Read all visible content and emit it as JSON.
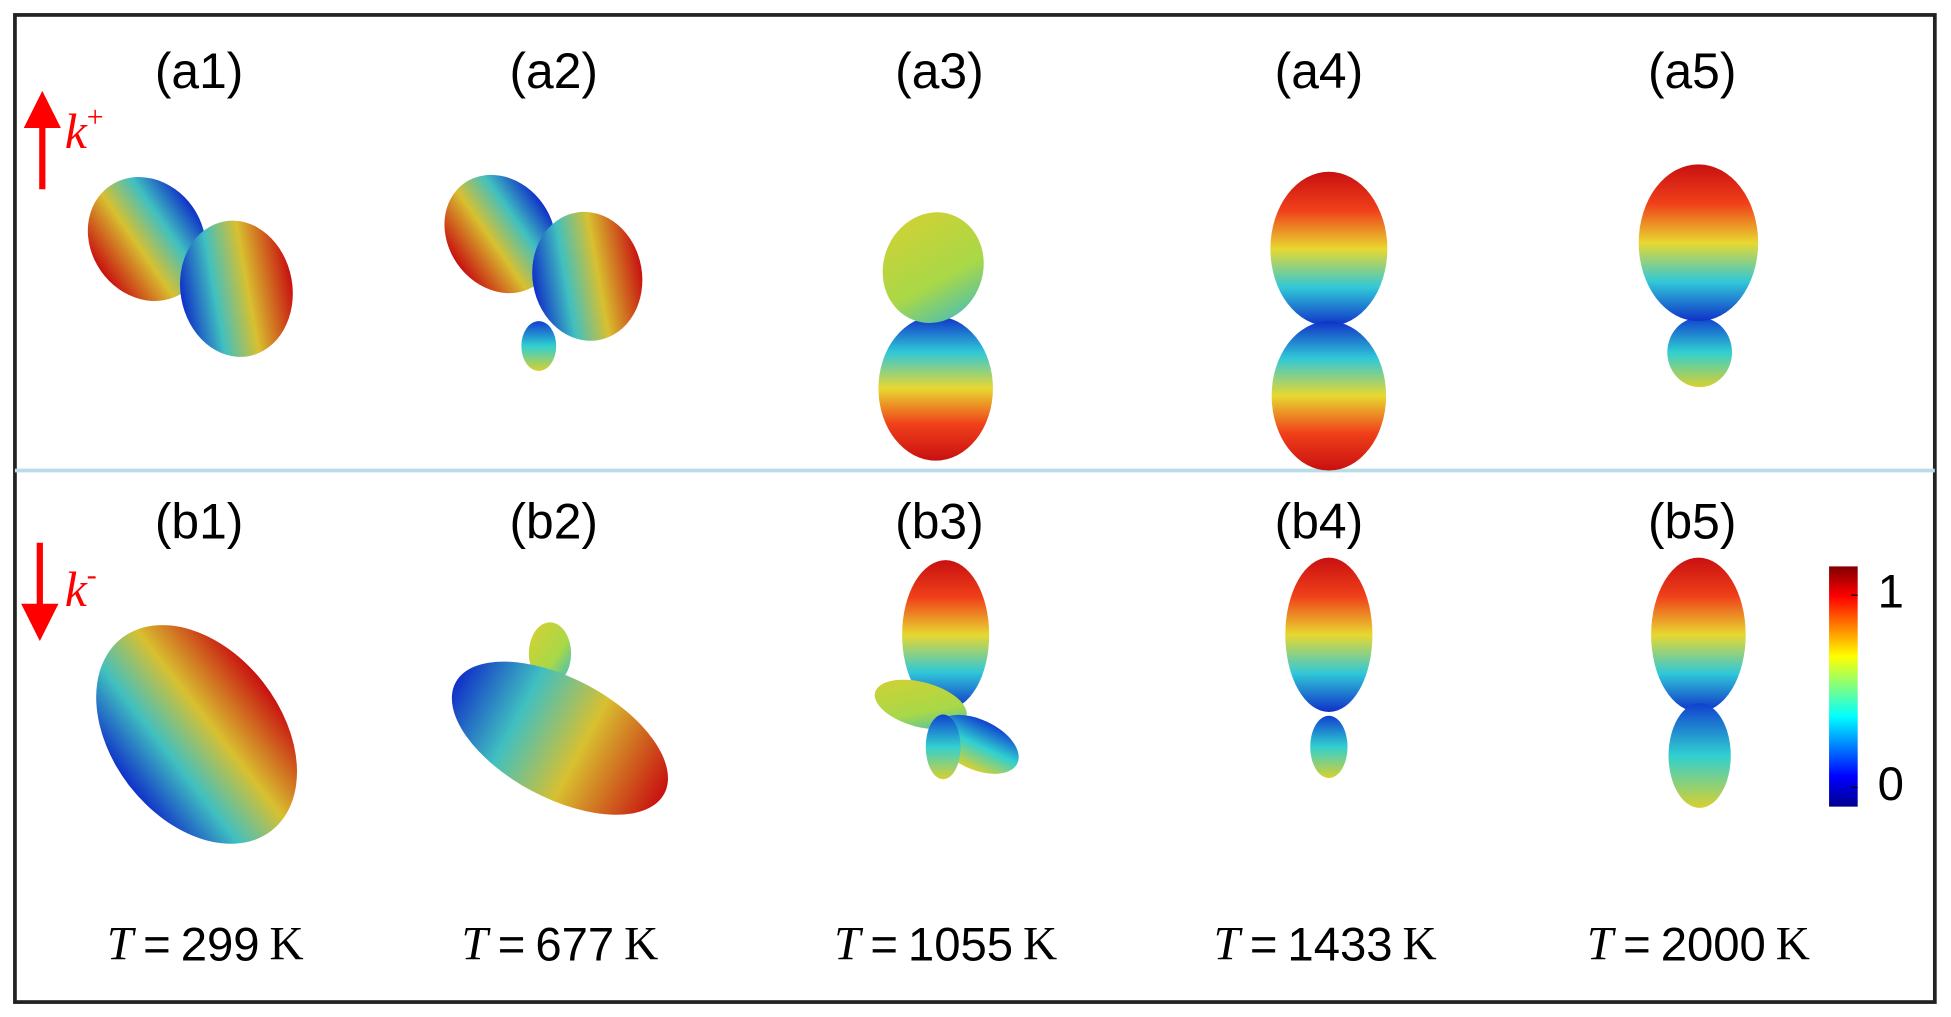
{
  "panels": {
    "top": {
      "labels": [
        "(a1)",
        "(a2)",
        "(a3)",
        "(a4)",
        "(a5)"
      ],
      "arrow_label": {
        "base": "k",
        "sup": "+"
      }
    },
    "bottom": {
      "labels": [
        "(b1)",
        "(b2)",
        "(b3)",
        "(b4)",
        "(b5)"
      ],
      "arrow_label": {
        "base": "k",
        "sup": "-"
      }
    }
  },
  "temperature": {
    "symbol": "T",
    "equals": "=",
    "unit": "K",
    "values": [
      299,
      677,
      1055,
      1433,
      2000
    ]
  },
  "colorbar": {
    "clim": [
      -0.1,
      1.15
    ],
    "ticks": [
      0,
      1
    ]
  }
}
